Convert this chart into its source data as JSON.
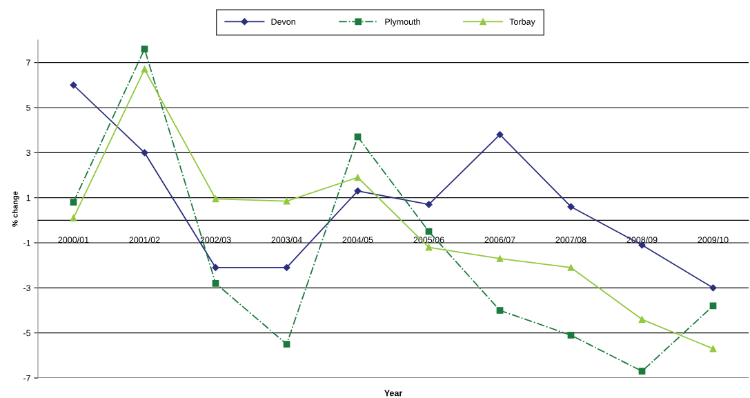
{
  "chart_data": {
    "type": "line",
    "xlabel": "Year",
    "ylabel": "% change",
    "categories": [
      "2000/01",
      "2001/02",
      "2002/03",
      "2003/04",
      "2004/05",
      "2005/06",
      "2006/07",
      "2007/08",
      "2008/09",
      "2009/10"
    ],
    "series": [
      {
        "name": "Devon",
        "color": "#2b2f7e",
        "marker": "diamond",
        "line_style": "solid",
        "values": [
          6.0,
          3.0,
          -2.1,
          -2.1,
          1.3,
          0.7,
          3.8,
          0.6,
          -1.1,
          -3.0
        ]
      },
      {
        "name": "Plymouth",
        "color": "#1b7a3e",
        "marker": "square",
        "line_style": "dashdot",
        "values": [
          0.8,
          7.6,
          -2.8,
          -5.5,
          3.7,
          -0.5,
          -4.0,
          -5.1,
          -6.7,
          -3.8
        ]
      },
      {
        "name": "Torbay",
        "color": "#92c83e",
        "marker": "triangle",
        "line_style": "solid",
        "values": [
          0.1,
          6.7,
          0.95,
          0.85,
          1.9,
          -1.2,
          -1.7,
          -2.1,
          -4.4,
          -5.7
        ]
      }
    ],
    "ylim": [
      -7,
      8
    ],
    "yticks": [
      -7,
      -5,
      -3,
      -1,
      1,
      3,
      5,
      7
    ],
    "grid": "y",
    "legend": "top"
  }
}
